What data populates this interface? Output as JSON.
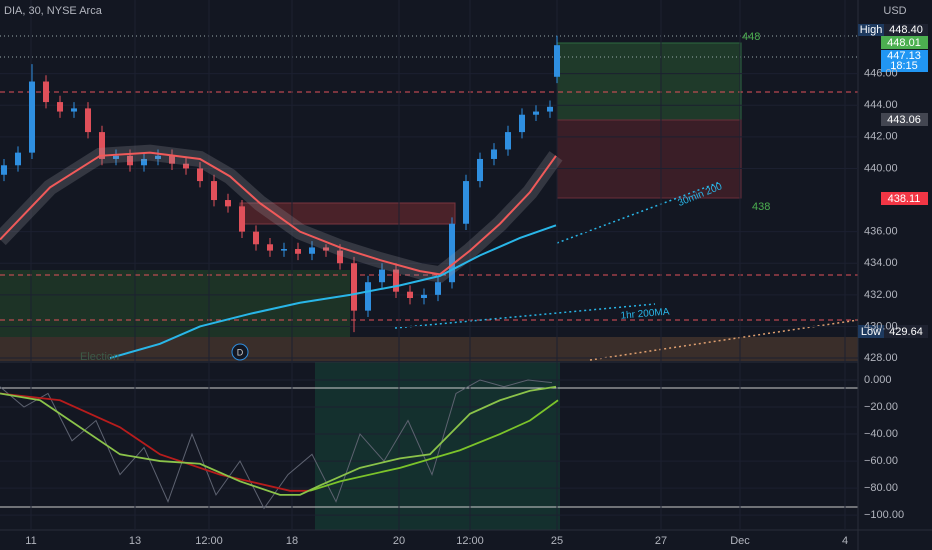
{
  "chart_data": [
    {
      "type": "candlestick",
      "title": "DIA, 30, NYSE Arca",
      "currency": "USD",
      "up_color": "#2f8fe0",
      "down_color": "#e0505a",
      "x": [
        1,
        4.5,
        8,
        11.5,
        15,
        18.5,
        22,
        25.5,
        29,
        32.5,
        36,
        39.5,
        43,
        46.5,
        50,
        53.5,
        57,
        60.5,
        64,
        67.5,
        71,
        74.5,
        78,
        81.5,
        85,
        88.5,
        92,
        95.5,
        99,
        102.5,
        106,
        109.5,
        113,
        116.5,
        120,
        123.5,
        127,
        130.5,
        134,
        137.5,
        139.25
      ],
      "open": [
        439.6,
        440.2,
        441.0,
        445.5,
        444.2,
        443.6,
        443.8,
        442.3,
        440.6,
        440.8,
        440.2,
        440.6,
        440.8,
        440.3,
        440.0,
        439.2,
        438.0,
        437.6,
        436.0,
        435.2,
        434.8,
        434.9,
        434.6,
        435.0,
        434.8,
        434.0,
        431.0,
        432.8,
        433.6,
        432.2,
        431.8,
        432.0,
        432.8,
        436.5,
        439.2,
        440.6,
        441.2,
        442.3,
        443.4,
        443.6,
        445.8
      ],
      "close": [
        440.2,
        441.0,
        445.5,
        444.2,
        443.6,
        443.8,
        442.3,
        440.6,
        440.8,
        440.2,
        440.6,
        440.8,
        440.3,
        440.0,
        439.2,
        438.0,
        437.6,
        436.0,
        435.2,
        434.8,
        434.9,
        434.6,
        435.0,
        434.8,
        434.0,
        431.0,
        432.8,
        433.6,
        432.2,
        431.8,
        432.0,
        432.8,
        436.5,
        439.2,
        440.6,
        441.2,
        442.3,
        443.4,
        443.6,
        443.9,
        447.8
      ],
      "high": [
        440.6,
        441.4,
        446.6,
        445.9,
        444.6,
        444.2,
        444.2,
        442.7,
        441.2,
        441.2,
        441.0,
        441.2,
        441.2,
        440.7,
        440.4,
        439.6,
        438.4,
        438.0,
        436.4,
        435.6,
        435.3,
        435.3,
        435.4,
        435.2,
        435.2,
        434.4,
        433.2,
        434.0,
        434.0,
        432.6,
        432.4,
        433.2,
        436.9,
        439.6,
        441.0,
        441.6,
        442.7,
        443.8,
        444.0,
        444.3,
        448.4
      ],
      "low": [
        439.2,
        439.8,
        440.6,
        443.8,
        443.2,
        443.2,
        441.9,
        440.2,
        440.2,
        439.8,
        439.8,
        440.2,
        439.9,
        439.6,
        438.8,
        437.6,
        437.2,
        435.6,
        434.8,
        434.4,
        434.4,
        434.2,
        434.2,
        434.4,
        433.6,
        429.64,
        430.6,
        432.4,
        431.8,
        431.4,
        431.4,
        431.6,
        432.4,
        436.1,
        438.8,
        440.2,
        440.8,
        441.9,
        443.0,
        443.2,
        445.4
      ],
      "lines": [
        {
          "color": "#f05a5a",
          "x": [
            0,
            12.5,
            25,
            37.5,
            50,
            57.5,
            65,
            75,
            85,
            95,
            105,
            110,
            117.5,
            125,
            132.5,
            139
          ],
          "values": [
            435.5,
            438.8,
            440.8,
            441.0,
            440.6,
            439.5,
            437.8,
            436.0,
            435.0,
            434.2,
            433.5,
            433.3,
            434.8,
            436.5,
            438.5,
            440.8
          ]
        },
        {
          "color": "#29b6e8",
          "x": [
            27.5,
            40,
            50,
            62.5,
            75,
            87.5,
            100,
            110,
            120,
            130,
            139
          ],
          "values": [
            428.0,
            428.9,
            430.0,
            430.8,
            431.5,
            432.0,
            432.6,
            433.2,
            434.5,
            435.6,
            436.4
          ]
        }
      ],
      "ylim": [
        427.75,
        450.66
      ],
      "xlim": [
        0,
        214.5
      ],
      "yticks": [
        {
          "value": 428,
          "label": "428.00"
        },
        {
          "value": 430,
          "label": "430.00"
        },
        {
          "value": 432,
          "label": "432.00"
        },
        {
          "value": 434,
          "label": "434.00"
        },
        {
          "value": 436,
          "label": "436.00"
        },
        {
          "value": 440,
          "label": "440.00"
        },
        {
          "value": 442,
          "label": "442.00"
        },
        {
          "value": 444,
          "label": "444.00"
        },
        {
          "value": 446,
          "label": "446.00"
        }
      ],
      "xticks": [
        {
          "value": 7.75,
          "label": "11"
        },
        {
          "value": 33.75,
          "label": "13"
        },
        {
          "value": 52.25,
          "label": "12:00"
        },
        {
          "value": 73,
          "label": "18"
        },
        {
          "value": 99.75,
          "label": "20"
        },
        {
          "value": 117.5,
          "label": "12:00"
        },
        {
          "value": 139.25,
          "label": "25"
        },
        {
          "value": 165.25,
          "label": "27"
        },
        {
          "value": 185,
          "label": "Dec"
        },
        {
          "value": 211.25,
          "label": "4"
        }
      ],
      "price_tags": {
        "high_label": "High",
        "high": "448.40",
        "last_green": "448.01",
        "last": "447.13",
        "countdown": "18:15",
        "level": "443.06",
        "red_level": "438.11",
        "low_label": "Low",
        "low": "429.64"
      },
      "annotations": {
        "target": "448",
        "stop": "438",
        "ma30": "30min 200",
        "ma1h": "1hr 200MA",
        "event": "D",
        "election": "Election"
      }
    },
    {
      "type": "line",
      "ylim": [
        -111,
        13.3
      ],
      "yticks": [
        {
          "value": 0,
          "label": "0.000"
        },
        {
          "value": -20,
          "label": "−20.00"
        },
        {
          "value": -40,
          "label": "−40.00"
        },
        {
          "value": -60,
          "label": "−60.00"
        },
        {
          "value": -80,
          "label": "−80.00"
        },
        {
          "value": -100,
          "label": "−100.00"
        }
      ],
      "series": [
        {
          "color": "#8bc34a",
          "x": [
            0,
            10,
            20,
            30,
            40,
            50,
            60,
            70,
            75,
            80,
            90,
            100,
            107.5,
            112.5,
            117.5,
            125,
            132.5,
            139
          ],
          "values": [
            -10,
            -15,
            -35,
            -55,
            -60,
            -62,
            -75,
            -85,
            -85,
            -78,
            -65,
            -58,
            -55,
            -40,
            -25,
            -15,
            -8,
            -5
          ]
        },
        {
          "color": "#b71c1c",
          "x": [
            0,
            15,
            30,
            40,
            55,
            72.5,
            77.5
          ],
          "values": [
            -10,
            -15,
            -35,
            -55,
            -70,
            -82,
            -82
          ]
        },
        {
          "color": "#7cc42a",
          "x": [
            77.5,
            85,
            100,
            115,
            125,
            132.5,
            139.5
          ],
          "values": [
            -82,
            -75,
            -65,
            -52,
            -40,
            -30,
            -15
          ]
        },
        {
          "color": "#5d6270",
          "x": [
            0,
            6,
            12,
            18,
            24,
            30,
            36,
            42,
            48,
            54,
            60,
            66,
            72,
            78,
            84,
            90,
            96,
            102,
            108,
            114,
            120,
            126,
            132,
            138
          ],
          "values": [
            -5,
            -20,
            -10,
            -45,
            -30,
            -70,
            -50,
            -90,
            -40,
            -85,
            -60,
            -95,
            -70,
            -55,
            -90,
            -40,
            -60,
            -30,
            -70,
            -10,
            0,
            -5,
            0,
            -2
          ]
        }
      ]
    }
  ]
}
